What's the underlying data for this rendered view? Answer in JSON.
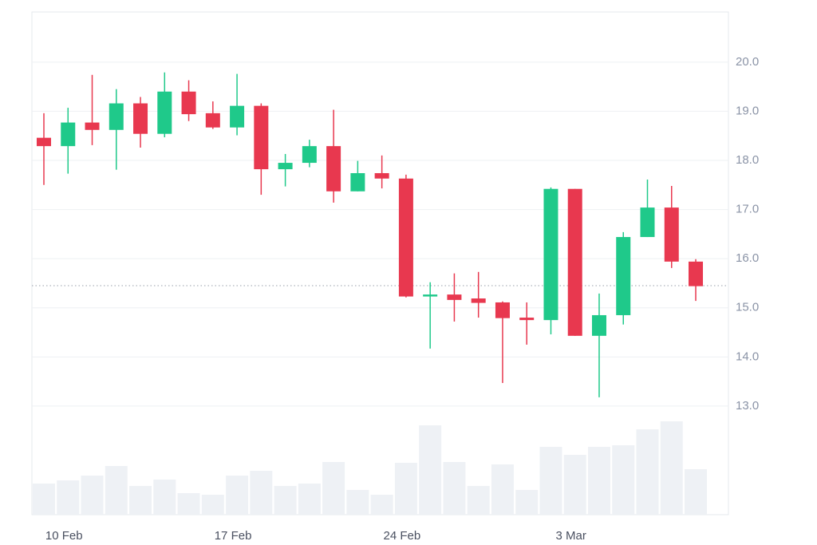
{
  "chart_data": {
    "type": "candlestick",
    "categories": [
      null,
      "10 Feb",
      null,
      null,
      null,
      null,
      null,
      null,
      "17 Feb",
      null,
      null,
      null,
      null,
      null,
      null,
      "24 Feb",
      null,
      null,
      null,
      null,
      null,
      null,
      "3 Mar",
      null,
      null,
      null,
      null,
      null
    ],
    "open": [
      18.46,
      18.29,
      18.77,
      18.62,
      19.16,
      18.54,
      19.4,
      18.96,
      18.67,
      19.11,
      17.82,
      17.95,
      18.29,
      17.37,
      17.74,
      17.63,
      15.23,
      15.27,
      15.19,
      15.11,
      14.8,
      14.75,
      17.42,
      14.43,
      14.85,
      16.44,
      17.04,
      15.94
    ],
    "high": [
      18.96,
      19.07,
      19.74,
      19.45,
      19.29,
      19.79,
      19.63,
      19.2,
      19.76,
      19.16,
      18.13,
      18.42,
      19.03,
      17.99,
      18.1,
      17.71,
      15.52,
      15.7,
      15.73,
      15.13,
      15.11,
      17.45,
      17.42,
      15.29,
      16.54,
      17.61,
      17.48,
      15.99
    ],
    "low": [
      17.5,
      17.73,
      18.31,
      17.81,
      18.26,
      18.47,
      18.8,
      18.64,
      18.51,
      17.3,
      17.47,
      17.86,
      17.14,
      17.37,
      17.43,
      15.21,
      14.17,
      14.72,
      14.8,
      13.47,
      14.25,
      14.46,
      14.43,
      13.18,
      14.66,
      16.44,
      15.81,
      15.14
    ],
    "close": [
      18.29,
      18.77,
      18.62,
      19.16,
      18.54,
      19.4,
      18.94,
      18.67,
      19.11,
      17.82,
      17.95,
      18.29,
      17.37,
      17.74,
      17.63,
      15.23,
      15.27,
      15.16,
      15.1,
      14.79,
      14.75,
      17.42,
      14.43,
      14.85,
      16.44,
      17.04,
      15.94,
      15.44
    ],
    "volume": [
      39,
      43,
      49,
      61,
      36,
      44,
      27,
      25,
      49,
      55,
      36,
      39,
      66,
      31,
      25,
      65,
      112,
      66,
      36,
      63,
      31,
      85,
      75,
      85,
      87,
      107,
      117,
      57
    ],
    "up_color": "#1fc98a",
    "down_color": "#e8384f",
    "volume_color": "#eef1f5",
    "last_price": 15.45,
    "ylim": [
      10.79,
      21.02
    ],
    "yticks": [
      {
        "value": 13,
        "label": "13.0"
      },
      {
        "value": 14,
        "label": "14.0"
      },
      {
        "value": 15,
        "label": "15.0"
      },
      {
        "value": 16,
        "label": "16.0"
      },
      {
        "value": 17,
        "label": "17.0"
      },
      {
        "value": 18,
        "label": "18.0"
      },
      {
        "value": 19,
        "label": "19.0"
      },
      {
        "value": 20,
        "label": "20.0"
      }
    ],
    "volume_ylim": [
      0,
      630
    ],
    "grid": true
  }
}
